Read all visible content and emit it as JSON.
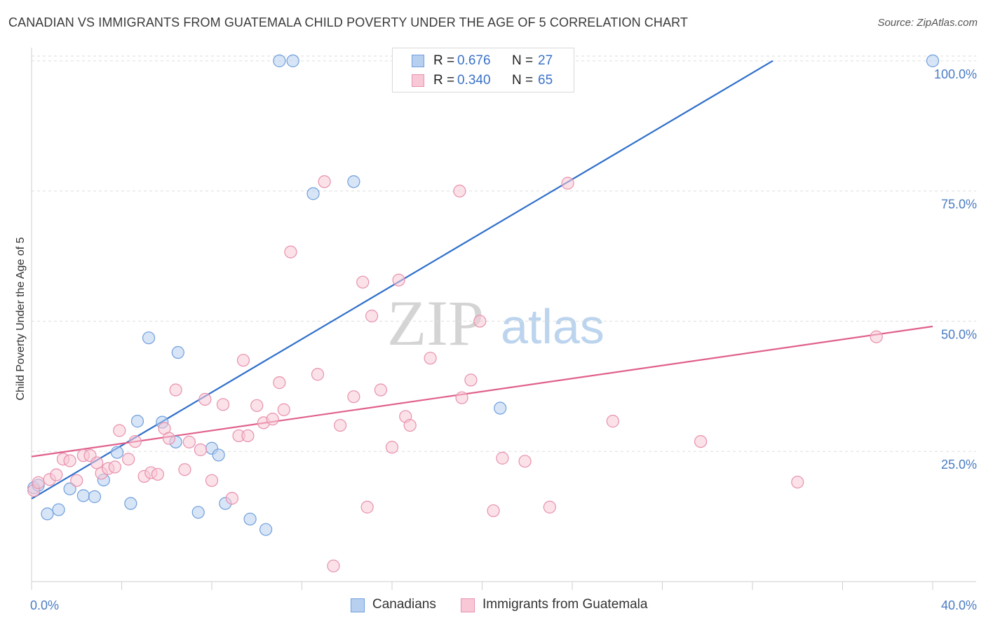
{
  "title": "CANADIAN VS IMMIGRANTS FROM GUATEMALA CHILD POVERTY UNDER THE AGE OF 5 CORRELATION CHART",
  "source": "Source: ZipAtlas.com",
  "watermark": {
    "zip": "ZIP",
    "atlas": "atlas"
  },
  "legend": {
    "rows": [
      {
        "r_label": "R =",
        "r_value": "0.676",
        "n_label": "N =",
        "n_value": "27"
      },
      {
        "r_label": "R =",
        "r_value": "0.340",
        "n_label": "N =",
        "n_value": "65"
      }
    ]
  },
  "bottom_legend": [
    "Canadians",
    "Immigrants from Guatemala"
  ],
  "colors": {
    "canadians_fill": "#b8d0f0",
    "canadians_stroke": "#6f9fdc",
    "canadians_line": "#2f6fcc",
    "guatemala_fill": "#f8c8d6",
    "guatemala_stroke": "#e891ad",
    "guatemala_line": "#e0608c",
    "tick_text": "#4a7cc4",
    "grid": "#dddddd"
  },
  "chart_data": {
    "type": "scatter",
    "title": "CANADIAN VS IMMIGRANTS FROM GUATEMALA CHILD POVERTY UNDER THE AGE OF 5 CORRELATION CHART",
    "xlabel": "",
    "ylabel": "Child Poverty Under the Age of 5",
    "xlim": [
      0,
      40
    ],
    "ylim": [
      0,
      102
    ],
    "x_tick_labels": [
      "0.0%",
      "40.0%"
    ],
    "y_ticks": [
      25,
      50,
      75,
      100
    ],
    "y_tick_labels": [
      "25.0%",
      "50.0%",
      "75.0%",
      "100.0%"
    ],
    "grid": true,
    "legend_position": "top-center",
    "series": [
      {
        "name": "Canadians",
        "trend": {
          "x": [
            0.0,
            32.9
          ],
          "y": [
            15.9,
            100.0
          ]
        },
        "points": [
          [
            0.1,
            18.0
          ],
          [
            0.3,
            18.5
          ],
          [
            0.7,
            13.0
          ],
          [
            1.2,
            13.8
          ],
          [
            1.7,
            17.8
          ],
          [
            2.3,
            16.5
          ],
          [
            2.8,
            16.3
          ],
          [
            3.2,
            19.5
          ],
          [
            3.8,
            24.8
          ],
          [
            4.4,
            15.0
          ],
          [
            4.7,
            30.8
          ],
          [
            5.2,
            46.8
          ],
          [
            5.8,
            30.6
          ],
          [
            6.4,
            26.8
          ],
          [
            6.5,
            44.0
          ],
          [
            7.4,
            13.3
          ],
          [
            8.0,
            25.6
          ],
          [
            8.3,
            24.3
          ],
          [
            8.6,
            15.0
          ],
          [
            9.7,
            12.0
          ],
          [
            10.4,
            10.0
          ],
          [
            11.0,
            100.0
          ],
          [
            11.6,
            100.0
          ],
          [
            12.5,
            74.5
          ],
          [
            14.3,
            76.8
          ],
          [
            20.8,
            33.3
          ],
          [
            40.0,
            100.0
          ]
        ]
      },
      {
        "name": "Immigrants from Guatemala",
        "trend": {
          "x": [
            0.0,
            40.0
          ],
          "y": [
            24.0,
            49.0
          ]
        },
        "points": [
          [
            0.1,
            17.5
          ],
          [
            0.3,
            19.0
          ],
          [
            0.8,
            19.6
          ],
          [
            1.1,
            20.5
          ],
          [
            1.4,
            23.5
          ],
          [
            1.7,
            23.2
          ],
          [
            2.0,
            19.4
          ],
          [
            2.3,
            24.2
          ],
          [
            2.6,
            24.2
          ],
          [
            2.9,
            22.8
          ],
          [
            3.1,
            20.8
          ],
          [
            3.4,
            21.7
          ],
          [
            3.7,
            22.0
          ],
          [
            3.9,
            29.0
          ],
          [
            4.3,
            23.5
          ],
          [
            4.6,
            26.9
          ],
          [
            5.0,
            20.2
          ],
          [
            5.3,
            20.9
          ],
          [
            5.6,
            20.6
          ],
          [
            5.9,
            29.4
          ],
          [
            6.1,
            27.5
          ],
          [
            6.4,
            36.8
          ],
          [
            6.8,
            21.5
          ],
          [
            7.0,
            26.8
          ],
          [
            7.5,
            25.3
          ],
          [
            7.7,
            35.0
          ],
          [
            8.0,
            19.4
          ],
          [
            8.5,
            34.0
          ],
          [
            8.9,
            16.0
          ],
          [
            9.2,
            28.0
          ],
          [
            9.4,
            42.5
          ],
          [
            9.6,
            28.0
          ],
          [
            10.0,
            33.8
          ],
          [
            10.3,
            30.5
          ],
          [
            10.7,
            31.2
          ],
          [
            11.0,
            38.2
          ],
          [
            11.2,
            33.0
          ],
          [
            11.5,
            63.3
          ],
          [
            12.7,
            39.8
          ],
          [
            13.0,
            76.8
          ],
          [
            13.4,
            3.0
          ],
          [
            13.7,
            30.0
          ],
          [
            14.3,
            35.5
          ],
          [
            14.7,
            57.5
          ],
          [
            14.9,
            14.3
          ],
          [
            15.1,
            51.0
          ],
          [
            15.5,
            36.8
          ],
          [
            16.0,
            25.8
          ],
          [
            16.3,
            57.9
          ],
          [
            16.6,
            31.7
          ],
          [
            16.8,
            30.0
          ],
          [
            17.7,
            42.9
          ],
          [
            19.0,
            75.0
          ],
          [
            19.1,
            35.3
          ],
          [
            19.5,
            38.7
          ],
          [
            19.9,
            50.0
          ],
          [
            20.5,
            13.6
          ],
          [
            20.9,
            23.7
          ],
          [
            21.9,
            23.1
          ],
          [
            23.0,
            14.3
          ],
          [
            23.8,
            76.5
          ],
          [
            25.8,
            30.8
          ],
          [
            29.7,
            26.9
          ],
          [
            34.0,
            19.1
          ],
          [
            37.5,
            47.0
          ]
        ]
      }
    ]
  }
}
